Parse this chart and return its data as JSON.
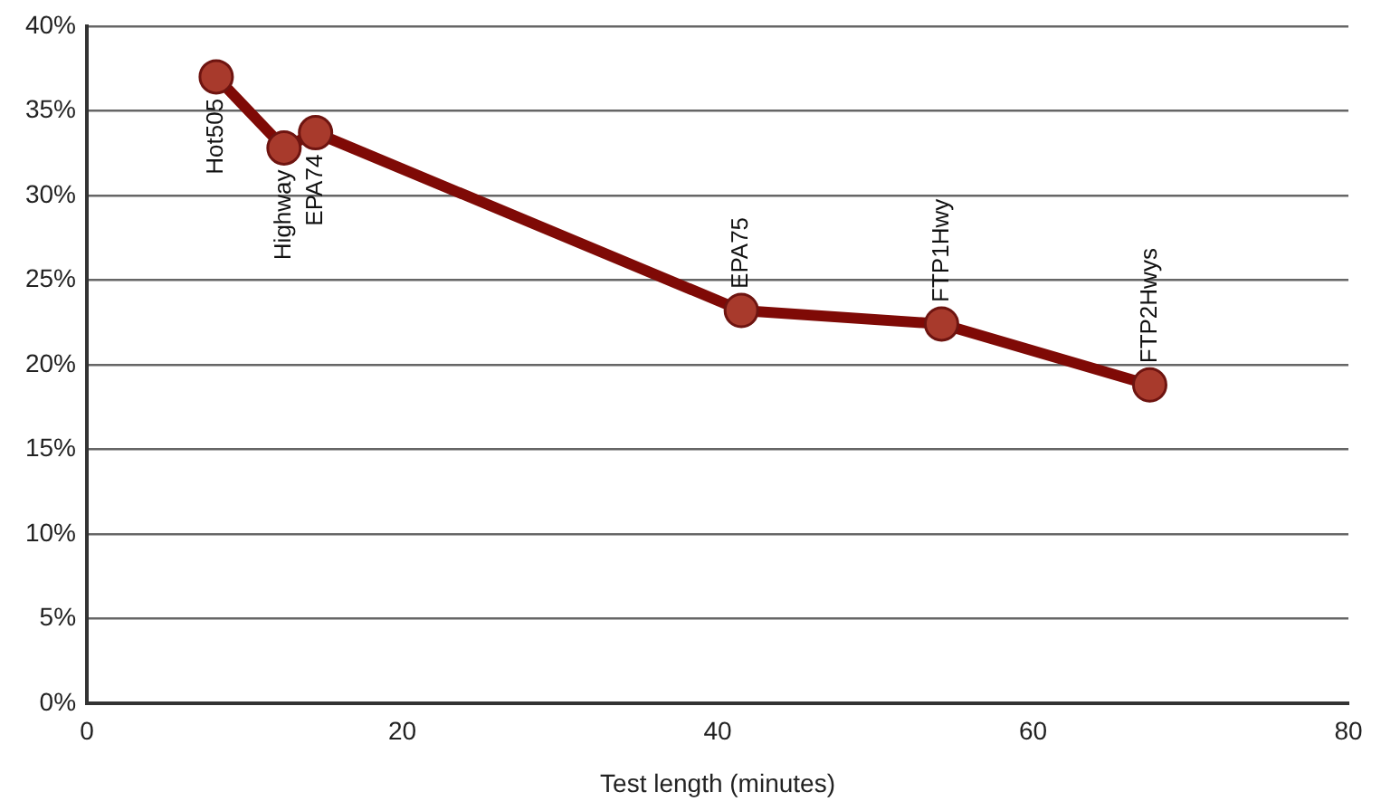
{
  "chart_data": {
    "type": "line",
    "xlabel": "Test length (minutes)",
    "x": [
      8.2,
      12.5,
      14.5,
      41.5,
      54.2,
      67.4
    ],
    "series": [
      {
        "color": "#7f0a06",
        "values": [
          37.0,
          32.8,
          33.7,
          23.2,
          22.4,
          18.8
        ]
      }
    ],
    "annotations": [
      {
        "text": "Hot505",
        "x": 8.2,
        "y": 37.0
      },
      {
        "text": "Highway",
        "x": 12.5,
        "y": 32.8
      },
      {
        "text": "EPA74",
        "x": 14.5,
        "y": 33.7
      },
      {
        "text": "EPA75",
        "x": 41.5,
        "y": 23.2
      },
      {
        "text": "FTP1Hwy",
        "x": 54.2,
        "y": 22.4
      },
      {
        "text": "FTP2Hwys",
        "x": 67.4,
        "y": 18.8
      }
    ],
    "xlim": [
      0,
      80
    ],
    "xticks": [
      0,
      20,
      40,
      60,
      80
    ],
    "ylim": [
      0,
      40
    ],
    "yticks": [
      {
        "value": 0,
        "label": "0%"
      },
      {
        "value": 5,
        "label": "5%"
      },
      {
        "value": 10,
        "label": "10%"
      },
      {
        "value": 15,
        "label": "15%"
      },
      {
        "value": 20,
        "label": "20%"
      },
      {
        "value": 25,
        "label": "25%"
      },
      {
        "value": 30,
        "label": "30%"
      },
      {
        "value": 35,
        "label": "35%"
      },
      {
        "value": 40,
        "label": "40%"
      }
    ],
    "grid": "y",
    "marker": "circle",
    "line_style": "solid"
  }
}
